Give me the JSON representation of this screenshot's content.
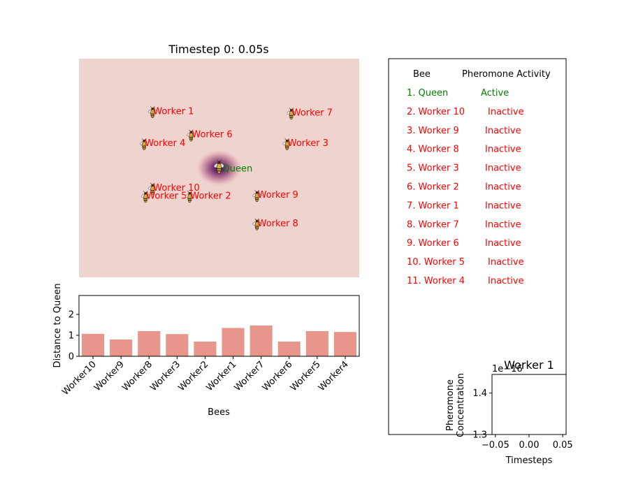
{
  "chart_data": [
    {
      "type": "scatter",
      "title": "Timestep 0: 0.05s",
      "xlabel": "",
      "ylabel": "",
      "xlim": [
        -2.0,
        2.0
      ],
      "ylim": [
        -1.5,
        1.5
      ],
      "grid": false,
      "background_color": "#efd3cf",
      "queen": {
        "label": "Queen",
        "x": 0.0,
        "y": 0.0,
        "color": "#008000"
      },
      "workers_color": "#ff0000",
      "points": [
        {
          "label": "Worker 1",
          "x": -0.95,
          "y": 0.75
        },
        {
          "label": "Worker 6",
          "x": -0.4,
          "y": 0.43
        },
        {
          "label": "Worker 4",
          "x": -1.07,
          "y": 0.31
        },
        {
          "label": "Worker 7",
          "x": 1.03,
          "y": 0.73
        },
        {
          "label": "Worker 3",
          "x": 0.97,
          "y": 0.31
        },
        {
          "label": "Worker 10",
          "x": -0.95,
          "y": -0.3
        },
        {
          "label": "Worker 5",
          "x": -1.05,
          "y": -0.41
        },
        {
          "label": "Worker 2",
          "x": -0.42,
          "y": -0.41
        },
        {
          "label": "Worker 9",
          "x": 0.54,
          "y": -0.4
        },
        {
          "label": "Worker 8",
          "x": 0.54,
          "y": -0.79
        }
      ]
    },
    {
      "type": "bar",
      "title": "",
      "xlabel": "Bees",
      "ylabel": "Distance to Queen",
      "ylim": [
        0,
        2.9
      ],
      "yticks": [
        "0",
        "1",
        "2"
      ],
      "bar_color": "#e8958c",
      "categories": [
        "Worker10",
        "Worker9",
        "Worker8",
        "Worker3",
        "Worker2",
        "Worker1",
        "Worker7",
        "Worker6",
        "Worker5",
        "Worker4"
      ],
      "values": [
        1.07,
        0.8,
        1.2,
        1.06,
        0.7,
        1.35,
        1.47,
        0.7,
        1.2,
        1.16
      ]
    },
    {
      "type": "table",
      "headers": [
        "Bee",
        "Pheromone Activity"
      ],
      "active_color": "#008000",
      "inactive_color": "#ff0000",
      "rows": [
        {
          "bee": "1. Queen",
          "status": "Active",
          "active": true
        },
        {
          "bee": "2. Worker 10",
          "status": "Inactive",
          "active": false
        },
        {
          "bee": "3. Worker 9",
          "status": "Inactive",
          "active": false
        },
        {
          "bee": "4. Worker 8",
          "status": "Inactive",
          "active": false
        },
        {
          "bee": "5. Worker 3",
          "status": "Inactive",
          "active": false
        },
        {
          "bee": "6. Worker 2",
          "status": "Inactive",
          "active": false
        },
        {
          "bee": "7. Worker 1",
          "status": "Inactive",
          "active": false
        },
        {
          "bee": "8. Worker 7",
          "status": "Inactive",
          "active": false
        },
        {
          "bee": "9. Worker 6",
          "status": "Inactive",
          "active": false
        },
        {
          "bee": "10. Worker 5",
          "status": "Inactive",
          "active": false
        },
        {
          "bee": "11. Worker 4",
          "status": "Inactive",
          "active": false
        }
      ]
    },
    {
      "type": "line",
      "title": "Worker 1",
      "xlabel": "Timesteps",
      "ylabel": "Pheromone\nConcentration",
      "offset_label": "1e−16",
      "xlim": [
        -0.055,
        0.055
      ],
      "ylim": [
        1.3,
        1.445
      ],
      "xticks": [
        -0.05,
        0.0,
        0.05
      ],
      "xtick_labels": [
        "−0.05",
        "0.00",
        "0.05"
      ],
      "yticks": [
        1.3,
        1.4
      ],
      "ytick_labels": [
        "1.3",
        "1.4"
      ],
      "series": []
    }
  ]
}
